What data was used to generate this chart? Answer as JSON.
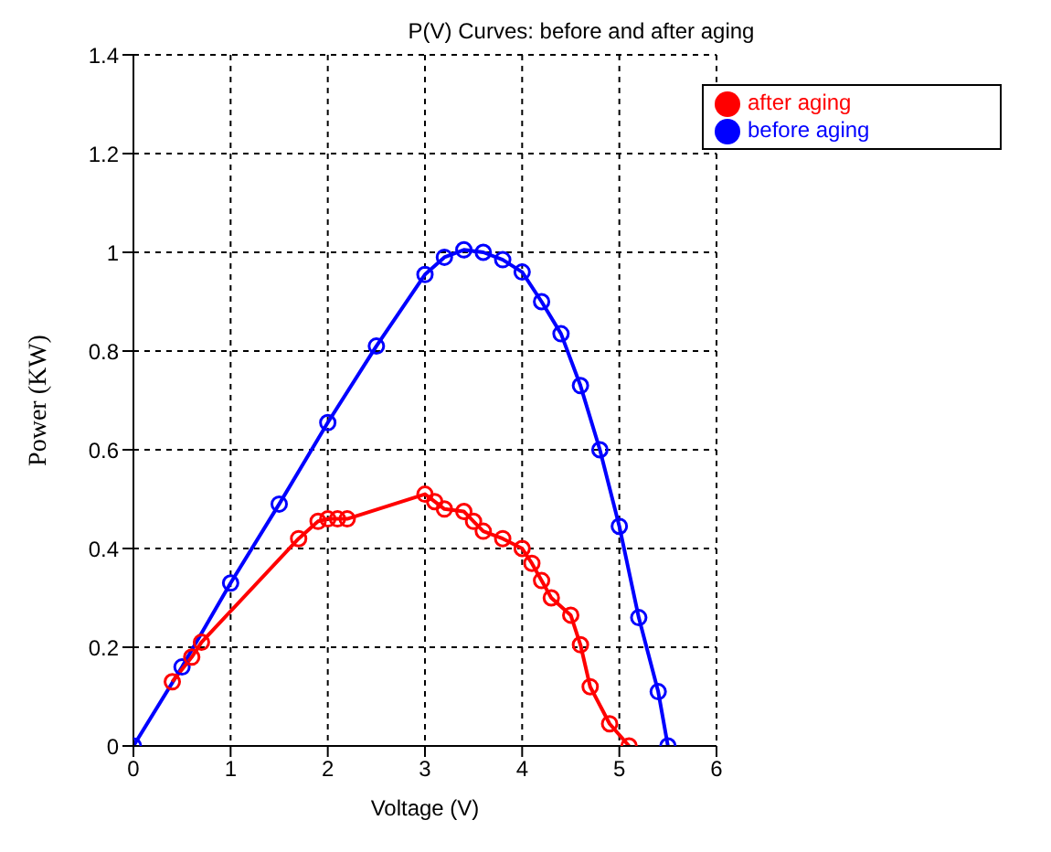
{
  "chart_data": {
    "type": "line",
    "title": "P(V) Curves: before and after aging",
    "xlabel": "Voltage (V)",
    "ylabel": "Power (KW)",
    "xlim": [
      0,
      6
    ],
    "xticks": [
      0,
      1,
      2,
      3,
      4,
      5,
      6
    ],
    "ylim": [
      0,
      1.4
    ],
    "yticks": [
      0,
      0.2,
      0.4,
      0.6,
      0.8,
      1,
      1.2,
      1.4
    ],
    "grid": true,
    "legend": "top right",
    "marker": "circle",
    "line_style": "solid",
    "series": [
      {
        "name": "before aging",
        "color": "#0000ff",
        "x": [
          0,
          0.5,
          1,
          1.5,
          2,
          2.5,
          3,
          3.2,
          3.4,
          3.6,
          3.8,
          4,
          4.2,
          4.4,
          4.6,
          4.8,
          5,
          5.2,
          5.4,
          5.5
        ],
        "values": [
          0,
          0.16,
          0.33,
          0.49,
          0.655,
          0.81,
          0.955,
          0.99,
          1.005,
          1.0,
          0.985,
          0.96,
          0.9,
          0.835,
          0.73,
          0.6,
          0.445,
          0.26,
          0.11,
          0
        ]
      },
      {
        "name": "after aging",
        "color": "#ff0000",
        "x": [
          0.4,
          0.6,
          0.7,
          1.7,
          1.9,
          2,
          2.1,
          2.2,
          3,
          3.1,
          3.2,
          3.4,
          3.5,
          3.6,
          3.8,
          4,
          4.1,
          4.2,
          4.3,
          4.5,
          4.6,
          4.7,
          4.9,
          5.1
        ],
        "values": [
          0.13,
          0.18,
          0.21,
          0.42,
          0.455,
          0.46,
          0.46,
          0.46,
          0.51,
          0.495,
          0.48,
          0.475,
          0.455,
          0.435,
          0.42,
          0.4,
          0.37,
          0.335,
          0.3,
          0.265,
          0.205,
          0.12,
          0.045,
          0
        ]
      }
    ]
  }
}
